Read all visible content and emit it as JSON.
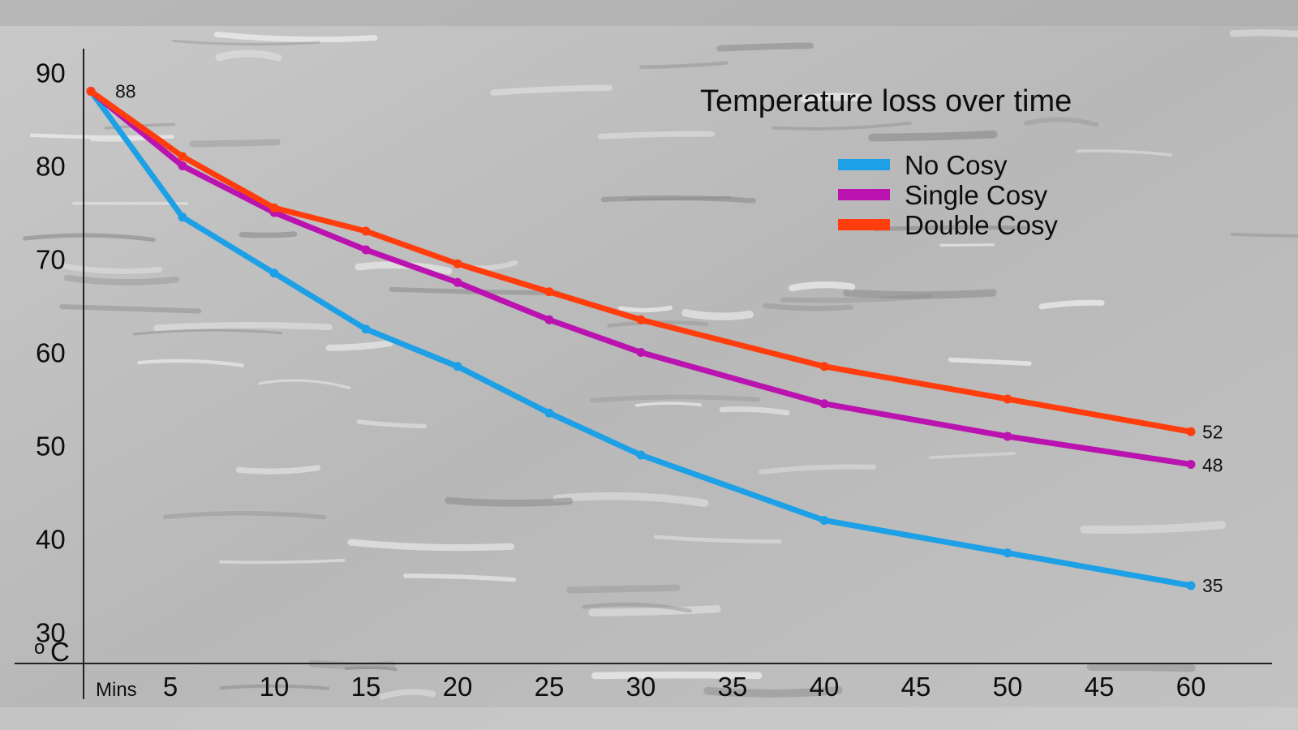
{
  "chart_data": {
    "type": "line",
    "title": "Temperature loss over time",
    "xlabel": "Mins",
    "ylabel": "oC",
    "y_unit_super": "o",
    "y_unit_letter": "C",
    "x_tick_labels": [
      "5",
      "10",
      "15",
      "20",
      "25",
      "30",
      "35",
      "40",
      "45",
      "50",
      "45",
      "60"
    ],
    "y_tick_labels": [
      "90",
      "80",
      "70",
      "60",
      "50",
      "40",
      "30"
    ],
    "ylim": [
      27,
      92
    ],
    "series": [
      {
        "name": "No Cosy",
        "color": "#1da0e6",
        "points": [
          [
            0,
            88
          ],
          [
            5,
            74.5
          ],
          [
            10,
            68.5
          ],
          [
            15,
            62.5
          ],
          [
            20,
            58.5
          ],
          [
            25,
            53.5
          ],
          [
            30,
            49
          ],
          [
            40,
            42
          ],
          [
            50,
            38.5
          ],
          [
            60,
            35
          ]
        ],
        "end_label": "35"
      },
      {
        "name": "Single Cosy",
        "color": "#bb13b0",
        "points": [
          [
            0,
            88
          ],
          [
            5,
            80
          ],
          [
            10,
            75
          ],
          [
            15,
            71
          ],
          [
            20,
            67.5
          ],
          [
            25,
            63.5
          ],
          [
            30,
            60
          ],
          [
            40,
            54.5
          ],
          [
            50,
            51
          ],
          [
            60,
            48
          ]
        ],
        "end_label": "48"
      },
      {
        "name": "Double Cosy",
        "color": "#ff3d0d",
        "points": [
          [
            0,
            88
          ],
          [
            5,
            81
          ],
          [
            10,
            75.5
          ],
          [
            15,
            73
          ],
          [
            20,
            69.5
          ],
          [
            25,
            66.5
          ],
          [
            30,
            63.5
          ],
          [
            40,
            58.5
          ],
          [
            50,
            55
          ],
          [
            60,
            51.5
          ]
        ],
        "end_label": "52"
      }
    ],
    "start_label": "88",
    "legend_position": "top-right"
  }
}
